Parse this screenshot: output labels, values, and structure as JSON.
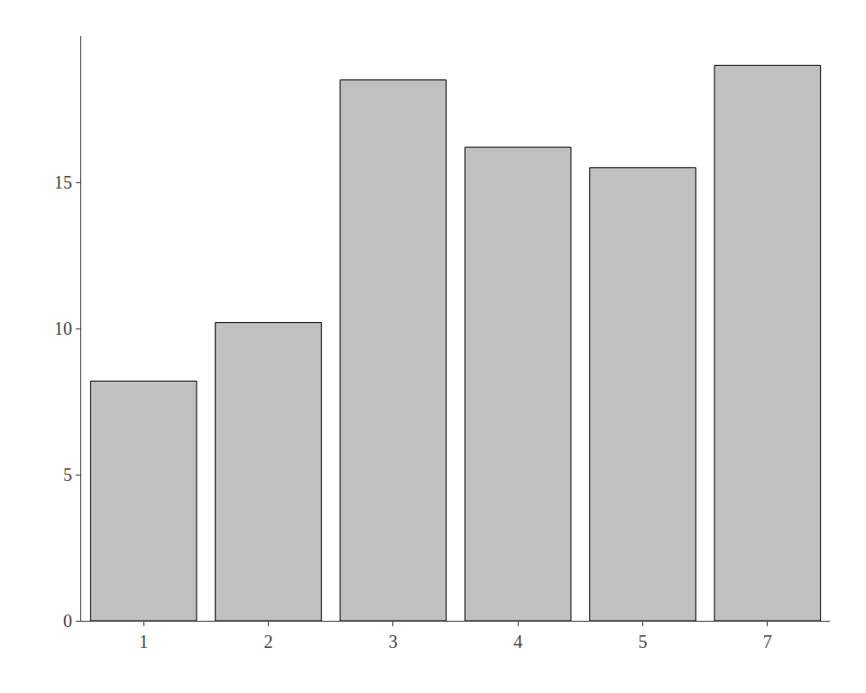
{
  "chart_data": {
    "type": "bar",
    "categories": [
      "1",
      "2",
      "3",
      "4",
      "5",
      "7"
    ],
    "values": [
      8.2,
      10.2,
      18.5,
      16.2,
      15.5,
      19.0
    ],
    "color": "#c0c0c0",
    "ylim": [
      0,
      20
    ],
    "yticks": [
      0,
      5,
      10,
      15
    ],
    "grid": false
  }
}
